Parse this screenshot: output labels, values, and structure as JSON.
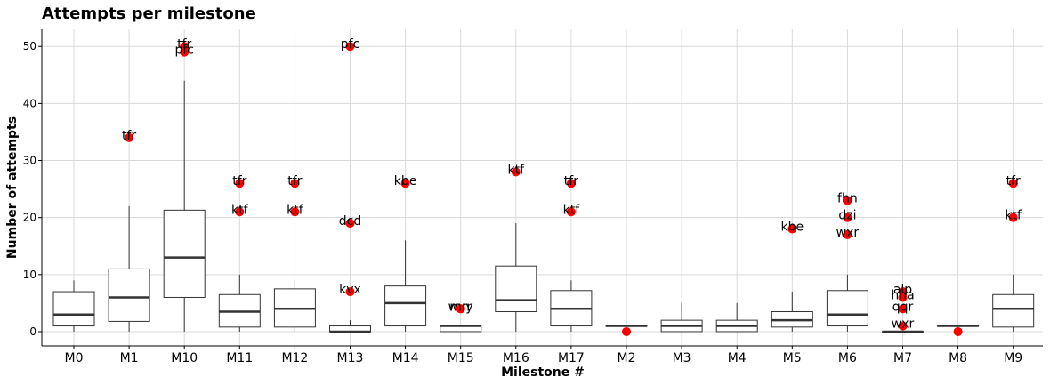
{
  "chart_data": {
    "type": "box",
    "title": "Attempts per milestone",
    "xlabel": "Milestone #",
    "ylabel": "Number of attempts",
    "ylim": [
      -2.5,
      53
    ],
    "yticks": [
      0,
      10,
      20,
      30,
      40,
      50
    ],
    "grid": true,
    "categories": [
      "M0",
      "M1",
      "M10",
      "M11",
      "M12",
      "M13",
      "M14",
      "M15",
      "M16",
      "M17",
      "M2",
      "M3",
      "M4",
      "M5",
      "M6",
      "M7",
      "M8",
      "M9"
    ],
    "boxes": [
      {
        "category": "M0",
        "whisker_low": 0,
        "q1": 1,
        "median": 3,
        "q3": 7,
        "whisker_high": 9
      },
      {
        "category": "M1",
        "whisker_low": 0,
        "q1": 1.8,
        "median": 6,
        "q3": 11,
        "whisker_high": 22
      },
      {
        "category": "M10",
        "whisker_low": 0,
        "q1": 6,
        "median": 13,
        "q3": 21.3,
        "whisker_high": 44
      },
      {
        "category": "M11",
        "whisker_low": 0,
        "q1": 0.8,
        "median": 3.5,
        "q3": 6.5,
        "whisker_high": 10
      },
      {
        "category": "M12",
        "whisker_low": 0,
        "q1": 0.8,
        "median": 4,
        "q3": 7.5,
        "whisker_high": 9
      },
      {
        "category": "M13",
        "whisker_low": 0,
        "q1": 0,
        "median": 0,
        "q3": 1,
        "whisker_high": 2
      },
      {
        "category": "M14",
        "whisker_low": 0,
        "q1": 1,
        "median": 5,
        "q3": 8,
        "whisker_high": 16
      },
      {
        "category": "M15",
        "whisker_low": 0,
        "q1": 0,
        "median": 1,
        "q3": 1,
        "whisker_high": 1
      },
      {
        "category": "M16",
        "whisker_low": 0,
        "q1": 3.5,
        "median": 5.5,
        "q3": 11.5,
        "whisker_high": 19
      },
      {
        "category": "M17",
        "whisker_low": 0,
        "q1": 1,
        "median": 4,
        "q3": 7.2,
        "whisker_high": 9
      },
      {
        "category": "M2",
        "whisker_low": 1,
        "q1": 1,
        "median": 1,
        "q3": 1,
        "whisker_high": 1
      },
      {
        "category": "M3",
        "whisker_low": 0,
        "q1": 0,
        "median": 1,
        "q3": 2,
        "whisker_high": 5
      },
      {
        "category": "M4",
        "whisker_low": 0,
        "q1": 0,
        "median": 1,
        "q3": 2,
        "whisker_high": 5
      },
      {
        "category": "M5",
        "whisker_low": 0,
        "q1": 0.8,
        "median": 2,
        "q3": 3.5,
        "whisker_high": 7
      },
      {
        "category": "M6",
        "whisker_low": 0,
        "q1": 1,
        "median": 3,
        "q3": 7.2,
        "whisker_high": 10
      },
      {
        "category": "M7",
        "whisker_low": 0,
        "q1": 0,
        "median": 0,
        "q3": 0,
        "whisker_high": 0
      },
      {
        "category": "M8",
        "whisker_low": 1,
        "q1": 1,
        "median": 1,
        "q3": 1,
        "whisker_high": 1
      },
      {
        "category": "M9",
        "whisker_low": 0,
        "q1": 0.8,
        "median": 4,
        "q3": 6.5,
        "whisker_high": 10
      }
    ],
    "outliers": [
      {
        "category": "M1",
        "y": 34,
        "label": "tfr"
      },
      {
        "category": "M10",
        "y": 50,
        "label": "tfr"
      },
      {
        "category": "M10",
        "y": 49,
        "label": "pfc"
      },
      {
        "category": "M11",
        "y": 26,
        "label": "tfr"
      },
      {
        "category": "M11",
        "y": 21,
        "label": "ktf"
      },
      {
        "category": "M12",
        "y": 26,
        "label": "tfr"
      },
      {
        "category": "M12",
        "y": 21,
        "label": "ktf"
      },
      {
        "category": "M13",
        "y": 50,
        "label": "pfc"
      },
      {
        "category": "M13",
        "y": 19,
        "label": "dcd"
      },
      {
        "category": "M13",
        "y": 7,
        "label": "kvx"
      },
      {
        "category": "M14",
        "y": 26,
        "label": "kbe"
      },
      {
        "category": "M15",
        "y": 4,
        "label": "wvy"
      },
      {
        "category": "M15",
        "y": 4,
        "label": "mrr"
      },
      {
        "category": "M16",
        "y": 28,
        "label": "ktf"
      },
      {
        "category": "M17",
        "y": 26,
        "label": "tfr"
      },
      {
        "category": "M17",
        "y": 21,
        "label": "ktf"
      },
      {
        "category": "M2",
        "y": 0,
        "label": ""
      },
      {
        "category": "M5",
        "y": 18,
        "label": "kbe"
      },
      {
        "category": "M6",
        "y": 23,
        "label": "fhn"
      },
      {
        "category": "M6",
        "y": 20,
        "label": "dzi"
      },
      {
        "category": "M6",
        "y": 17,
        "label": "wxr"
      },
      {
        "category": "M7",
        "y": 7,
        "label": "alp"
      },
      {
        "category": "M7",
        "y": 6,
        "label": "hha"
      },
      {
        "category": "M7",
        "y": 4,
        "label": "qqr"
      },
      {
        "category": "M7",
        "y": 1,
        "label": "wxr"
      },
      {
        "category": "M8",
        "y": 0,
        "label": ""
      },
      {
        "category": "M9",
        "y": 26,
        "label": "tfr"
      },
      {
        "category": "M9",
        "y": 20,
        "label": "ktf"
      }
    ],
    "colors": {
      "outlier": "#ff0000",
      "box_line": "#333333",
      "grid": "#d9d9d9",
      "axis": "#000000"
    }
  }
}
